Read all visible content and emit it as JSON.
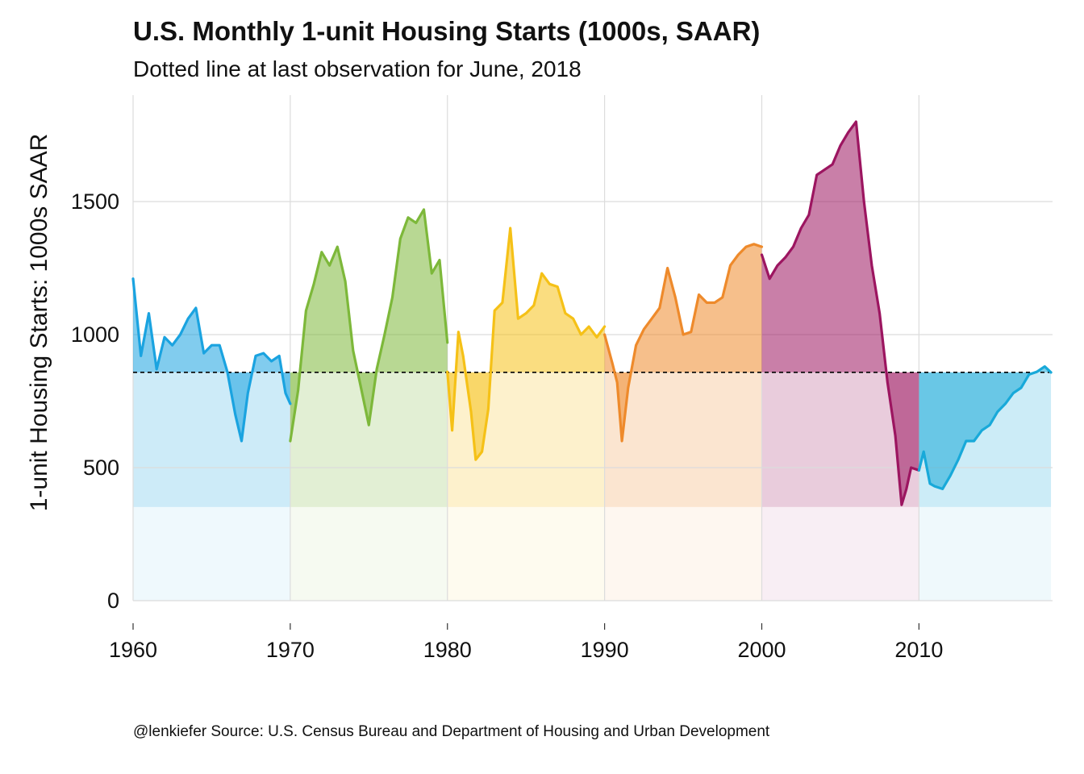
{
  "chart_data": {
    "type": "area",
    "title": "U.S. Monthly 1-unit Housing Starts (1000s, SAAR)",
    "subtitle": "Dotted line at last observation for June, 2018",
    "xlabel": "",
    "ylabel": "1-unit Housing Starts: 1000s SAAR",
    "caption": "@lenkiefer Source: U.S. Census Bureau and Department of Housing and Urban Development",
    "xlim": [
      1960,
      2018.5
    ],
    "ylim": [
      0,
      1900
    ],
    "x_ticks": [
      1960,
      1970,
      1980,
      1990,
      2000,
      2010
    ],
    "x_tick_labels": [
      "1960",
      "1970",
      "1980",
      "1990",
      "2000",
      "2010"
    ],
    "y_ticks": [
      0,
      500,
      1000,
      1500
    ],
    "y_tick_labels": [
      "0",
      "500",
      "1000",
      "1500"
    ],
    "reference_line": {
      "y": 858,
      "style": "dotted",
      "color": "#000000"
    },
    "grid": true,
    "legend": "none",
    "series": [
      {
        "decade": "1960s",
        "color": "#1aa3e0",
        "x": [
          1960.0,
          1960.5,
          1961.0,
          1961.5,
          1962.0,
          1962.5,
          1963.0,
          1963.5,
          1964.0,
          1964.5,
          1965.0,
          1965.5,
          1966.0,
          1966.5,
          1966.9,
          1967.3,
          1967.8,
          1968.3,
          1968.8,
          1969.3,
          1969.7,
          1970.0
        ],
        "y": [
          1210,
          920,
          1080,
          870,
          990,
          960,
          1000,
          1060,
          1100,
          930,
          960,
          960,
          860,
          700,
          600,
          780,
          920,
          930,
          900,
          920,
          780,
          740
        ]
      },
      {
        "decade": "1970s",
        "color": "#7db83a",
        "x": [
          1970.0,
          1970.5,
          1971.0,
          1971.5,
          1972.0,
          1972.5,
          1973.0,
          1973.5,
          1974.0,
          1974.5,
          1975.0,
          1975.5,
          1976.0,
          1976.5,
          1977.0,
          1977.5,
          1978.0,
          1978.5,
          1979.0,
          1979.5,
          1980.0
        ],
        "y": [
          600,
          790,
          1090,
          1190,
          1310,
          1260,
          1330,
          1200,
          940,
          800,
          660,
          870,
          1000,
          1140,
          1360,
          1440,
          1420,
          1470,
          1230,
          1280,
          970
        ]
      },
      {
        "decade": "1980s",
        "color": "#f5c117",
        "x": [
          1980.0,
          1980.3,
          1980.7,
          1981.0,
          1981.5,
          1981.8,
          1982.2,
          1982.6,
          1983.0,
          1983.5,
          1984.0,
          1984.5,
          1985.0,
          1985.5,
          1986.0,
          1986.5,
          1987.0,
          1987.5,
          1988.0,
          1988.5,
          1989.0,
          1989.5,
          1990.0
        ],
        "y": [
          860,
          640,
          1010,
          920,
          710,
          530,
          560,
          720,
          1090,
          1120,
          1400,
          1060,
          1080,
          1110,
          1230,
          1190,
          1180,
          1080,
          1060,
          1000,
          1030,
          990,
          1030
        ]
      },
      {
        "decade": "1990s",
        "color": "#ee8a2b",
        "x": [
          1990.0,
          1990.5,
          1990.8,
          1991.1,
          1991.5,
          1992.0,
          1992.5,
          1993.0,
          1993.5,
          1994.0,
          1994.5,
          1995.0,
          1995.5,
          1996.0,
          1996.5,
          1997.0,
          1997.5,
          1998.0,
          1998.5,
          1999.0,
          1999.5,
          2000.0
        ],
        "y": [
          1000,
          890,
          820,
          600,
          800,
          960,
          1020,
          1060,
          1100,
          1250,
          1140,
          1000,
          1010,
          1150,
          1120,
          1120,
          1140,
          1260,
          1300,
          1330,
          1340,
          1330
        ]
      },
      {
        "decade": "2000s",
        "color": "#9c1560",
        "x": [
          2000.0,
          2000.5,
          2001.0,
          2001.5,
          2002.0,
          2002.5,
          2003.0,
          2003.5,
          2004.0,
          2004.5,
          2005.0,
          2005.5,
          2006.0,
          2006.5,
          2007.0,
          2007.5,
          2008.0,
          2008.5,
          2008.9,
          2009.2,
          2009.5,
          2010.0
        ],
        "y": [
          1300,
          1210,
          1260,
          1290,
          1330,
          1400,
          1450,
          1600,
          1620,
          1640,
          1710,
          1760,
          1800,
          1500,
          1260,
          1080,
          820,
          620,
          360,
          420,
          500,
          490
        ]
      },
      {
        "decade": "2010s",
        "color": "#18a9d9",
        "x": [
          2010.0,
          2010.3,
          2010.7,
          2011.0,
          2011.5,
          2012.0,
          2012.5,
          2013.0,
          2013.5,
          2014.0,
          2014.5,
          2015.0,
          2015.5,
          2016.0,
          2016.5,
          2017.0,
          2017.5,
          2018.0,
          2018.4
        ],
        "y": [
          490,
          560,
          440,
          430,
          420,
          470,
          530,
          600,
          600,
          640,
          660,
          710,
          740,
          780,
          800,
          850,
          860,
          880,
          858
        ]
      }
    ]
  }
}
